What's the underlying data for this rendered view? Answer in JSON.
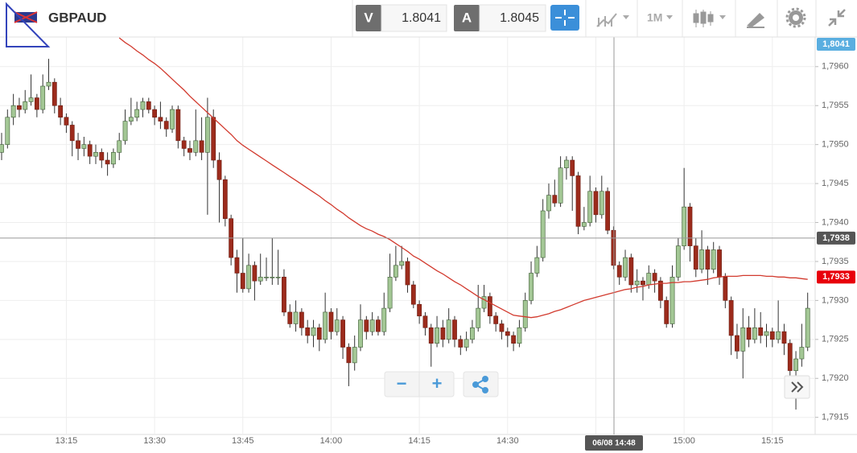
{
  "toolbar": {
    "symbol": "GBPAUD",
    "bid_label": "V",
    "bid": "1.8041",
    "ask_label": "A",
    "ask": "1.8045",
    "timeframe": "1M"
  },
  "zoom": {
    "out": "−",
    "in": "+"
  },
  "chart_data": {
    "type": "candlestick",
    "categories": [
      null,
      null,
      null,
      null,
      null,
      null,
      null,
      null,
      null,
      null,
      null,
      "13:15",
      null,
      null,
      null,
      null,
      null,
      null,
      null,
      null,
      null,
      null,
      null,
      null,
      null,
      null,
      "13:30",
      null,
      null,
      null,
      null,
      null,
      null,
      null,
      null,
      null,
      null,
      null,
      null,
      null,
      null,
      "13:45",
      null,
      null,
      null,
      null,
      null,
      null,
      null,
      null,
      null,
      null,
      null,
      null,
      null,
      null,
      "14:00",
      null,
      null,
      null,
      null,
      null,
      null,
      null,
      null,
      null,
      null,
      null,
      null,
      null,
      null,
      "14:15",
      null,
      null,
      null,
      null,
      null,
      null,
      null,
      null,
      null,
      null,
      null,
      null,
      null,
      null,
      "14:30",
      null,
      null,
      null,
      null,
      null,
      null,
      null,
      null,
      null,
      null,
      null,
      null,
      null,
      null,
      "14:45",
      null,
      null,
      null,
      null,
      null,
      null,
      null,
      null,
      null,
      null,
      null,
      null,
      null,
      null,
      "15:00",
      null,
      null,
      null,
      null,
      null,
      null,
      null,
      null,
      null,
      null,
      null,
      null,
      null,
      null,
      "15:15",
      null,
      null,
      null,
      null,
      null,
      null
    ],
    "open": [
      1.7949,
      1.795,
      1.79535,
      1.7955,
      1.79545,
      1.79555,
      1.7956,
      1.79545,
      1.79575,
      1.7958,
      1.7955,
      1.79535,
      1.79525,
      1.79505,
      1.79495,
      1.795,
      1.79485,
      1.7949,
      1.7948,
      1.79475,
      1.7949,
      1.79505,
      1.7953,
      1.79535,
      1.79545,
      1.79555,
      1.79545,
      1.79535,
      1.7953,
      1.7952,
      1.79545,
      1.79505,
      1.79495,
      1.7949,
      1.79505,
      1.7949,
      1.79535,
      1.7948,
      1.79455,
      1.79405,
      1.79355,
      1.79335,
      1.79315,
      1.79345,
      1.79325,
      1.7933,
      1.7933,
      1.7933,
      1.7933,
      1.79285,
      1.7927,
      1.79285,
      1.79265,
      1.79255,
      1.79265,
      1.7925,
      1.79285,
      1.7926,
      1.79275,
      1.7924,
      1.7922,
      1.7924,
      1.79275,
      1.7926,
      1.79275,
      1.7926,
      1.7929,
      1.7933,
      1.79345,
      1.7935,
      1.7932,
      1.79295,
      1.7928,
      1.79265,
      1.79245,
      1.79265,
      1.7925,
      1.79275,
      1.7925,
      1.7924,
      1.7925,
      1.79265,
      1.7929,
      1.79305,
      1.7928,
      1.7927,
      1.7926,
      1.79255,
      1.79245,
      1.79265,
      1.793,
      1.79335,
      1.79355,
      1.79415,
      1.79435,
      1.79425,
      1.7947,
      1.7948,
      1.7946,
      1.79395,
      1.794,
      1.7944,
      1.7941,
      1.7944,
      1.7939,
      1.79345,
      1.7933,
      1.79355,
      1.7932,
      1.79325,
      1.7932,
      1.79335,
      1.79325,
      1.793,
      1.7927,
      1.7933,
      1.7937,
      1.7942,
      1.7937,
      1.7934,
      1.79365,
      1.7934,
      1.79365,
      1.7933,
      1.793,
      1.79255,
      1.79235,
      1.79265,
      1.7925,
      1.79265,
      1.79255,
      1.7926,
      1.7925,
      1.7926,
      1.79245,
      1.7921,
      1.79225,
      1.7924
    ],
    "high": [
      1.79515,
      1.79545,
      1.79565,
      1.7956,
      1.7957,
      1.7959,
      1.79565,
      1.7959,
      1.7961,
      1.79585,
      1.7956,
      1.7954,
      1.7953,
      1.79515,
      1.7951,
      1.79505,
      1.795,
      1.79495,
      1.7949,
      1.79495,
      1.79515,
      1.79545,
      1.7956,
      1.79555,
      1.7956,
      1.7956,
      1.7955,
      1.79555,
      1.79535,
      1.7955,
      1.7955,
      1.7951,
      1.79505,
      1.79545,
      1.79535,
      1.7956,
      1.79545,
      1.7949,
      1.7946,
      1.7941,
      1.79365,
      1.7938,
      1.7936,
      1.7935,
      1.7936,
      1.79355,
      1.7938,
      1.79365,
      1.7934,
      1.79295,
      1.793,
      1.7929,
      1.79275,
      1.79275,
      1.7927,
      1.7931,
      1.7929,
      1.7929,
      1.7928,
      1.79245,
      1.79255,
      1.79295,
      1.7928,
      1.79285,
      1.7928,
      1.7931,
      1.7936,
      1.7937,
      1.7937,
      1.79355,
      1.79325,
      1.793,
      1.79285,
      1.7927,
      1.7928,
      1.79275,
      1.7929,
      1.7928,
      1.79255,
      1.7926,
      1.79275,
      1.7932,
      1.7932,
      1.7931,
      1.79285,
      1.79275,
      1.79265,
      1.7926,
      1.79275,
      1.7931,
      1.7935,
      1.7937,
      1.7943,
      1.7945,
      1.79455,
      1.79485,
      1.79485,
      1.79485,
      1.79465,
      1.7942,
      1.7946,
      1.79445,
      1.7946,
      1.79445,
      1.79395,
      1.7935,
      1.79365,
      1.7936,
      1.7934,
      1.7933,
      1.79345,
      1.7934,
      1.7933,
      1.79305,
      1.79345,
      1.7938,
      1.7947,
      1.79425,
      1.7938,
      1.7939,
      1.7937,
      1.79375,
      1.7937,
      1.79335,
      1.79305,
      1.7927,
      1.7929,
      1.7928,
      1.7929,
      1.79285,
      1.7927,
      1.79265,
      1.793,
      1.7927,
      1.7925,
      1.79235,
      1.7927,
      1.7931
    ],
    "low": [
      1.7948,
      1.79495,
      1.79525,
      1.79535,
      1.7954,
      1.7955,
      1.79535,
      1.7954,
      1.7957,
      1.7954,
      1.79525,
      1.79515,
      1.79485,
      1.7948,
      1.79485,
      1.79475,
      1.79475,
      1.7947,
      1.7946,
      1.7947,
      1.7948,
      1.795,
      1.79525,
      1.7953,
      1.79535,
      1.7954,
      1.79525,
      1.7952,
      1.7951,
      1.79515,
      1.79495,
      1.79485,
      1.7948,
      1.79485,
      1.7948,
      1.7941,
      1.7947,
      1.794,
      1.79395,
      1.79345,
      1.7931,
      1.7931,
      1.7931,
      1.793,
      1.7932,
      1.79325,
      1.7932,
      1.7932,
      1.7928,
      1.79265,
      1.7926,
      1.79255,
      1.79245,
      1.7924,
      1.79235,
      1.79245,
      1.7925,
      1.79255,
      1.79225,
      1.7919,
      1.7921,
      1.79235,
      1.7925,
      1.79255,
      1.79255,
      1.79255,
      1.79285,
      1.79325,
      1.7934,
      1.7931,
      1.7929,
      1.7927,
      1.79255,
      1.79215,
      1.7924,
      1.7924,
      1.79245,
      1.7924,
      1.7923,
      1.79235,
      1.79245,
      1.7926,
      1.79285,
      1.7927,
      1.7926,
      1.7925,
      1.7924,
      1.79235,
      1.7924,
      1.7926,
      1.79295,
      1.7933,
      1.7935,
      1.79405,
      1.7942,
      1.7942,
      1.79455,
      1.79415,
      1.79385,
      1.7939,
      1.79395,
      1.794,
      1.79405,
      1.79385,
      1.7934,
      1.7932,
      1.79325,
      1.7931,
      1.7931,
      1.793,
      1.79315,
      1.7931,
      1.7929,
      1.79265,
      1.79265,
      1.79325,
      1.79365,
      1.7935,
      1.7933,
      1.79335,
      1.7932,
      1.79335,
      1.7932,
      1.7929,
      1.7923,
      1.79225,
      1.792,
      1.7924,
      1.79245,
      1.79245,
      1.7924,
      1.7924,
      1.79245,
      1.7923,
      1.792,
      1.7916,
      1.79215,
      1.79235
    ],
    "close": [
      1.795,
      1.79535,
      1.7955,
      1.79545,
      1.79555,
      1.7956,
      1.79545,
      1.79575,
      1.7958,
      1.7955,
      1.79535,
      1.79525,
      1.79505,
      1.79495,
      1.795,
      1.79485,
      1.7949,
      1.7948,
      1.79475,
      1.7949,
      1.79505,
      1.7953,
      1.79535,
      1.79545,
      1.79555,
      1.79545,
      1.79535,
      1.7953,
      1.7952,
      1.79545,
      1.79505,
      1.79495,
      1.7949,
      1.79505,
      1.7949,
      1.79535,
      1.7948,
      1.79455,
      1.79405,
      1.79355,
      1.79335,
      1.79315,
      1.79345,
      1.79325,
      1.7933,
      1.7933,
      1.7933,
      1.7933,
      1.79285,
      1.7927,
      1.79285,
      1.79265,
      1.79255,
      1.79265,
      1.7925,
      1.79285,
      1.7926,
      1.79275,
      1.7924,
      1.7922,
      1.7924,
      1.79275,
      1.7926,
      1.79275,
      1.7926,
      1.7929,
      1.7933,
      1.79345,
      1.7935,
      1.7932,
      1.79295,
      1.7928,
      1.79265,
      1.79245,
      1.79265,
      1.7925,
      1.79275,
      1.7925,
      1.7924,
      1.7925,
      1.79265,
      1.7929,
      1.79305,
      1.7928,
      1.7927,
      1.7926,
      1.79255,
      1.79245,
      1.79265,
      1.793,
      1.79335,
      1.79355,
      1.79415,
      1.79435,
      1.79425,
      1.7947,
      1.7948,
      1.7946,
      1.79395,
      1.794,
      1.7944,
      1.7941,
      1.7944,
      1.7939,
      1.79345,
      1.7933,
      1.79355,
      1.7932,
      1.79325,
      1.7932,
      1.79335,
      1.79325,
      1.793,
      1.7927,
      1.7933,
      1.7937,
      1.7942,
      1.7937,
      1.7934,
      1.79365,
      1.7934,
      1.79365,
      1.7933,
      1.793,
      1.79255,
      1.79235,
      1.79265,
      1.7925,
      1.79265,
      1.79255,
      1.7926,
      1.7925,
      1.7926,
      1.79245,
      1.7921,
      1.79225,
      1.7924,
      1.7929
    ],
    "up_color": "#a3c795",
    "down_color": "#9c2b1c",
    "line": {
      "color": "#d23a2e",
      "values": [
        null,
        null,
        null,
        null,
        null,
        null,
        null,
        null,
        null,
        null,
        null,
        null,
        null,
        null,
        null,
        null,
        null,
        null,
        null,
        null,
        1.79637,
        1.79631,
        1.79626,
        1.7962,
        1.79615,
        1.79609,
        1.79604,
        1.79598,
        1.79591,
        1.79584,
        1.79577,
        1.7957,
        1.79562,
        1.79555,
        1.79548,
        1.79541,
        1.79534,
        1.79527,
        1.7952,
        1.79513,
        1.79505,
        1.79499,
        1.79494,
        1.79489,
        1.79484,
        1.79479,
        1.79474,
        1.79469,
        1.79464,
        1.79459,
        1.79454,
        1.79449,
        1.79444,
        1.79439,
        1.79434,
        1.79428,
        1.79423,
        1.79417,
        1.79412,
        1.79406,
        1.79401,
        1.79396,
        1.79392,
        1.79389,
        1.79385,
        1.79382,
        1.79378,
        1.79373,
        1.79368,
        1.79363,
        1.79357,
        1.79353,
        1.79348,
        1.79343,
        1.79338,
        1.79334,
        1.79329,
        1.79324,
        1.7932,
        1.79315,
        1.7931,
        1.79305,
        1.79301,
        1.79297,
        1.79293,
        1.79289,
        1.79285,
        1.79281,
        1.7928,
        1.79279,
        1.79278,
        1.79279,
        1.79281,
        1.79283,
        1.79286,
        1.79288,
        1.79291,
        1.79294,
        1.79297,
        1.793,
        1.79302,
        1.79304,
        1.79306,
        1.79308,
        1.7931,
        1.79312,
        1.79314,
        1.79315,
        1.79317,
        1.79318,
        1.7932,
        1.79321,
        1.79322,
        1.79322,
        1.79323,
        1.79323,
        1.79324,
        1.79324,
        1.79325,
        1.79326,
        1.79327,
        1.79329,
        1.7933,
        1.79331,
        1.79331,
        1.79331,
        1.79332,
        1.79332,
        1.79332,
        1.79332,
        1.79331,
        1.79331,
        1.7933,
        1.7933,
        1.79329,
        1.79329,
        1.79328,
        1.79327
      ]
    },
    "ylim": [
      1.79128,
      1.79638
    ],
    "yticks": [
      {
        "value": 1.7915,
        "label": "1,7915"
      },
      {
        "value": 1.792,
        "label": "1,7920"
      },
      {
        "value": 1.7925,
        "label": "1,7925"
      },
      {
        "value": 1.793,
        "label": "1,7930"
      },
      {
        "value": 1.7935,
        "label": "1,7935"
      },
      {
        "value": 1.794,
        "label": "1,7940"
      },
      {
        "value": 1.7945,
        "label": "1,7945"
      },
      {
        "value": 1.795,
        "label": "1,7950"
      },
      {
        "value": 1.7955,
        "label": "1,7955"
      },
      {
        "value": 1.796,
        "label": "1,7960"
      }
    ],
    "grid": true,
    "price_labels": [
      {
        "value": 1.8041,
        "label": "1,8041",
        "color": "#5aaee0"
      },
      {
        "value": 1.7933,
        "label": "1,7933",
        "color": "#e8000b"
      }
    ],
    "crosshair": {
      "value": 1.7938,
      "label": "1,7938",
      "time": "06/08 14:48"
    }
  }
}
